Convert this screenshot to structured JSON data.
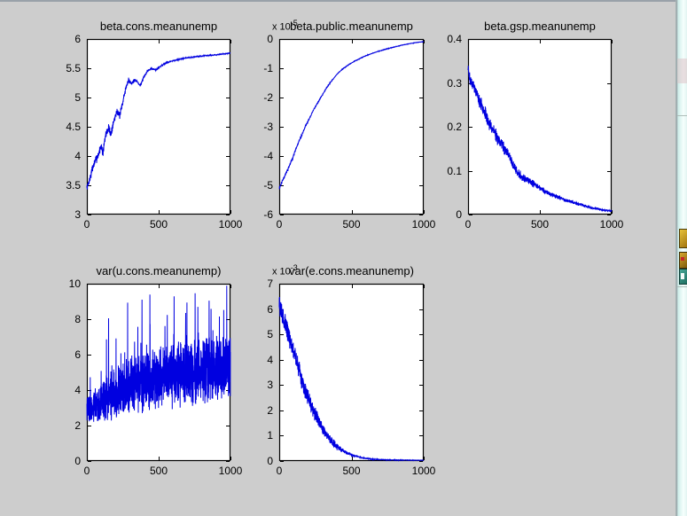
{
  "window": {
    "kind": "matlab-figure-canvas",
    "figure_background": "#cdcdcd",
    "axes_background": "#ffffff",
    "axes_line_color": "#000000",
    "trace_color": "#0000e0"
  },
  "chart_data": [
    {
      "type": "line",
      "title": "beta.cons.meanunemp",
      "xlabel": "",
      "ylabel": "",
      "xlim": [
        0,
        1000
      ],
      "ylim": [
        3,
        6
      ],
      "x_ticks": [
        0,
        500,
        1000
      ],
      "y_ticks": [
        3,
        3.5,
        4,
        4.5,
        5,
        5.5,
        6
      ],
      "grid": false,
      "legend": null,
      "line_color": "#0000e0",
      "seed": 7,
      "points": 1000,
      "anchors": [
        [
          0,
          3.45
        ],
        [
          20,
          3.6
        ],
        [
          40,
          3.8
        ],
        [
          60,
          3.92
        ],
        [
          80,
          4.02
        ],
        [
          100,
          4.18
        ],
        [
          112,
          4.05
        ],
        [
          130,
          4.35
        ],
        [
          150,
          4.48
        ],
        [
          168,
          4.38
        ],
        [
          190,
          4.62
        ],
        [
          210,
          4.78
        ],
        [
          228,
          4.68
        ],
        [
          250,
          4.92
        ],
        [
          270,
          5.15
        ],
        [
          290,
          5.3
        ],
        [
          310,
          5.24
        ],
        [
          330,
          5.3
        ],
        [
          352,
          5.27
        ],
        [
          372,
          5.2
        ],
        [
          392,
          5.32
        ],
        [
          420,
          5.45
        ],
        [
          450,
          5.5
        ],
        [
          480,
          5.47
        ],
        [
          520,
          5.55
        ],
        [
          560,
          5.6
        ],
        [
          620,
          5.64
        ],
        [
          700,
          5.68
        ],
        [
          800,
          5.71
        ],
        [
          900,
          5.73
        ],
        [
          1000,
          5.76
        ]
      ],
      "noise": [
        [
          0,
          0.05
        ],
        [
          150,
          0.06
        ],
        [
          250,
          0.04
        ],
        [
          350,
          0.025
        ],
        [
          450,
          0.012
        ],
        [
          600,
          0.007
        ],
        [
          1000,
          0.004
        ]
      ]
    },
    {
      "type": "line",
      "title": "beta.public.meanunemp",
      "exponent": {
        "prefix": "x 10",
        "sup": "-5"
      },
      "xlabel": "",
      "ylabel": "",
      "xlim": [
        0,
        1000
      ],
      "ylim": [
        -6,
        0
      ],
      "x_ticks": [
        0,
        500,
        1000
      ],
      "y_ticks": [
        -6,
        -5,
        -4,
        -3,
        -2,
        -1,
        0
      ],
      "grid": false,
      "legend": null,
      "line_color": "#0000e0",
      "seed": 11,
      "points": 1000,
      "anchors": [
        [
          0,
          -5.1
        ],
        [
          30,
          -4.75
        ],
        [
          60,
          -4.45
        ],
        [
          90,
          -4.1
        ],
        [
          120,
          -3.7
        ],
        [
          150,
          -3.35
        ],
        [
          180,
          -3.0
        ],
        [
          210,
          -2.7
        ],
        [
          240,
          -2.4
        ],
        [
          270,
          -2.15
        ],
        [
          300,
          -1.9
        ],
        [
          330,
          -1.65
        ],
        [
          360,
          -1.45
        ],
        [
          400,
          -1.2
        ],
        [
          440,
          -1.02
        ],
        [
          480,
          -0.88
        ],
        [
          520,
          -0.76
        ],
        [
          560,
          -0.66
        ],
        [
          600,
          -0.57
        ],
        [
          650,
          -0.48
        ],
        [
          700,
          -0.4
        ],
        [
          750,
          -0.33
        ],
        [
          800,
          -0.27
        ],
        [
          850,
          -0.21
        ],
        [
          900,
          -0.16
        ],
        [
          950,
          -0.12
        ],
        [
          1000,
          -0.09
        ]
      ],
      "noise": [
        [
          0,
          0.05
        ],
        [
          100,
          0.04
        ],
        [
          200,
          0.02
        ],
        [
          400,
          0.008
        ],
        [
          1000,
          0.004
        ]
      ]
    },
    {
      "type": "line",
      "title": "beta.gsp.meanunemp",
      "xlabel": "",
      "ylabel": "",
      "xlim": [
        0,
        1000
      ],
      "ylim": [
        0,
        0.4
      ],
      "x_ticks": [
        0,
        500,
        1000
      ],
      "y_ticks": [
        0,
        0.1,
        0.2,
        0.3,
        0.4
      ],
      "grid": false,
      "legend": null,
      "line_color": "#0000e0",
      "seed": 23,
      "points": 1000,
      "anchors": [
        [
          0,
          0.335
        ],
        [
          15,
          0.305
        ],
        [
          30,
          0.3
        ],
        [
          50,
          0.285
        ],
        [
          70,
          0.265
        ],
        [
          90,
          0.252
        ],
        [
          110,
          0.24
        ],
        [
          130,
          0.222
        ],
        [
          150,
          0.205
        ],
        [
          170,
          0.196
        ],
        [
          190,
          0.185
        ],
        [
          210,
          0.172
        ],
        [
          230,
          0.163
        ],
        [
          250,
          0.152
        ],
        [
          270,
          0.143
        ],
        [
          290,
          0.13
        ],
        [
          310,
          0.115
        ],
        [
          330,
          0.103
        ],
        [
          350,
          0.093
        ],
        [
          370,
          0.087
        ],
        [
          390,
          0.082
        ],
        [
          420,
          0.076
        ],
        [
          450,
          0.071
        ],
        [
          480,
          0.066
        ],
        [
          510,
          0.058
        ],
        [
          540,
          0.052
        ],
        [
          570,
          0.047
        ],
        [
          600,
          0.043
        ],
        [
          640,
          0.038
        ],
        [
          680,
          0.033
        ],
        [
          720,
          0.029
        ],
        [
          760,
          0.025
        ],
        [
          800,
          0.021
        ],
        [
          850,
          0.016
        ],
        [
          900,
          0.013
        ],
        [
          950,
          0.01
        ],
        [
          1000,
          0.008
        ]
      ],
      "noise": [
        [
          0,
          0.01
        ],
        [
          200,
          0.012
        ],
        [
          350,
          0.008
        ],
        [
          500,
          0.005
        ],
        [
          700,
          0.003
        ],
        [
          1000,
          0.0015
        ]
      ]
    },
    {
      "type": "line",
      "title": "var(u.cons.meanunemp)",
      "xlabel": "",
      "ylabel": "",
      "xlim": [
        0,
        1000
      ],
      "ylim": [
        0,
        10
      ],
      "x_ticks": [
        0,
        500,
        1000
      ],
      "y_ticks": [
        0,
        2,
        4,
        6,
        8,
        10
      ],
      "grid": false,
      "legend": null,
      "line_color": "#0000e0",
      "seed": 41,
      "points": 1500,
      "anchors": [
        [
          0,
          3.0
        ],
        [
          60,
          3.2
        ],
        [
          120,
          3.4
        ],
        [
          200,
          3.8
        ],
        [
          280,
          4.1
        ],
        [
          360,
          4.4
        ],
        [
          440,
          4.6
        ],
        [
          520,
          4.75
        ],
        [
          600,
          4.9
        ],
        [
          700,
          5.05
        ],
        [
          800,
          5.15
        ],
        [
          900,
          5.25
        ],
        [
          1000,
          5.35
        ]
      ],
      "noise": [
        [
          0,
          0.6
        ],
        [
          100,
          0.9
        ],
        [
          200,
          1.1
        ],
        [
          300,
          1.2
        ],
        [
          500,
          1.3
        ],
        [
          700,
          1.4
        ],
        [
          1000,
          1.35
        ]
      ],
      "spikes": {
        "prob": 0.02,
        "min": 1.2,
        "max": 4.2
      }
    },
    {
      "type": "line",
      "title": "var(e.cons.meanunemp)",
      "exponent": {
        "prefix": "x 10",
        "sup": "-3"
      },
      "xlabel": "",
      "ylabel": "",
      "xlim": [
        0,
        1000
      ],
      "ylim": [
        0,
        7
      ],
      "x_ticks": [
        0,
        500,
        1000
      ],
      "y_ticks": [
        0,
        1,
        2,
        3,
        4,
        5,
        6,
        7
      ],
      "grid": false,
      "legend": null,
      "line_color": "#0000e0",
      "seed": 57,
      "points": 1200,
      "anchors": [
        [
          0,
          6.2
        ],
        [
          10,
          6.0
        ],
        [
          25,
          5.7
        ],
        [
          40,
          5.45
        ],
        [
          60,
          5.05
        ],
        [
          80,
          4.68
        ],
        [
          100,
          4.3
        ],
        [
          120,
          3.92
        ],
        [
          140,
          3.55
        ],
        [
          160,
          3.12
        ],
        [
          180,
          2.8
        ],
        [
          200,
          2.5
        ],
        [
          220,
          2.22
        ],
        [
          240,
          1.95
        ],
        [
          260,
          1.7
        ],
        [
          280,
          1.5
        ],
        [
          300,
          1.3
        ],
        [
          320,
          1.12
        ],
        [
          340,
          0.95
        ],
        [
          360,
          0.8
        ],
        [
          380,
          0.68
        ],
        [
          400,
          0.57
        ],
        [
          430,
          0.45
        ],
        [
          460,
          0.35
        ],
        [
          500,
          0.25
        ],
        [
          550,
          0.16
        ],
        [
          600,
          0.1
        ],
        [
          650,
          0.07
        ],
        [
          700,
          0.055
        ],
        [
          800,
          0.04
        ],
        [
          900,
          0.035
        ],
        [
          1000,
          0.03
        ]
      ],
      "noise": [
        [
          0,
          0.28
        ],
        [
          80,
          0.3
        ],
        [
          160,
          0.28
        ],
        [
          240,
          0.22
        ],
        [
          320,
          0.16
        ],
        [
          400,
          0.1
        ],
        [
          480,
          0.05
        ],
        [
          560,
          0.02
        ],
        [
          700,
          0.008
        ],
        [
          1000,
          0.004
        ]
      ]
    }
  ],
  "desktop_strip": {
    "description": "sliver of desktop visible at right edge of screen",
    "colors": {
      "edge_line": "#8f979c",
      "strip_light": "#f6fffd",
      "strip_cyan": "#cfeeea"
    },
    "icons": [
      {
        "name": "folder-icon-fragment",
        "color": "#c9a021"
      },
      {
        "name": "document-icon-fragment",
        "color": "#b08a1e"
      },
      {
        "name": "app-icon-fragment",
        "color": "#2f8474"
      }
    ]
  }
}
